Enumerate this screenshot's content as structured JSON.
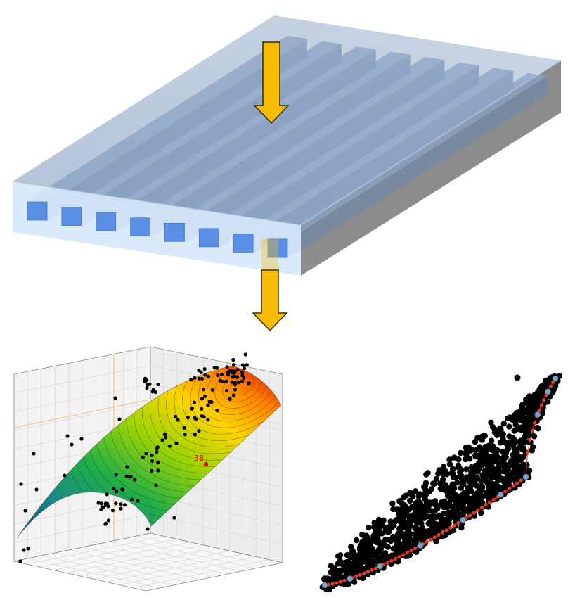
{
  "figure": {
    "panels": [
      "channel-plate-3d",
      "surface-scatter-3d",
      "pareto-scatter"
    ],
    "colors": {
      "plate_face": "#cfe3f8",
      "plate_top": "#9fb4cf",
      "plate_side": "#7f7f7f",
      "channel": "#5b8fe6",
      "arrow": "#f8bd00",
      "arrow_outline": "#3a2a00",
      "front_marker": "#e23b1f",
      "hull_marker": "#5b8bb5"
    },
    "icons": [
      "down-arrow-icon"
    ]
  },
  "plate": {
    "channel_count": 8,
    "arrow_count": 2
  },
  "surface_plot": {
    "annotation_label": "38"
  },
  "chart_data": [
    {
      "type": "surface",
      "title": "",
      "xlabel": "",
      "ylabel": "",
      "zlabel": "",
      "colormap": [
        "#0b3e7e",
        "#1fa36f",
        "#3dbf25",
        "#c6e000",
        "#ffd400",
        "#ff7a00",
        "#e00000"
      ],
      "grid": true,
      "annotations": [
        {
          "text": "38",
          "color": "#e00000"
        }
      ]
    },
    {
      "type": "scatter",
      "title": "",
      "xlabel": "",
      "ylabel": "",
      "grid": false,
      "series": [
        {
          "color": "#000000"
        },
        {
          "color": "#e23b1f"
        },
        {
          "color": "#5b8bb5"
        }
      ]
    }
  ]
}
